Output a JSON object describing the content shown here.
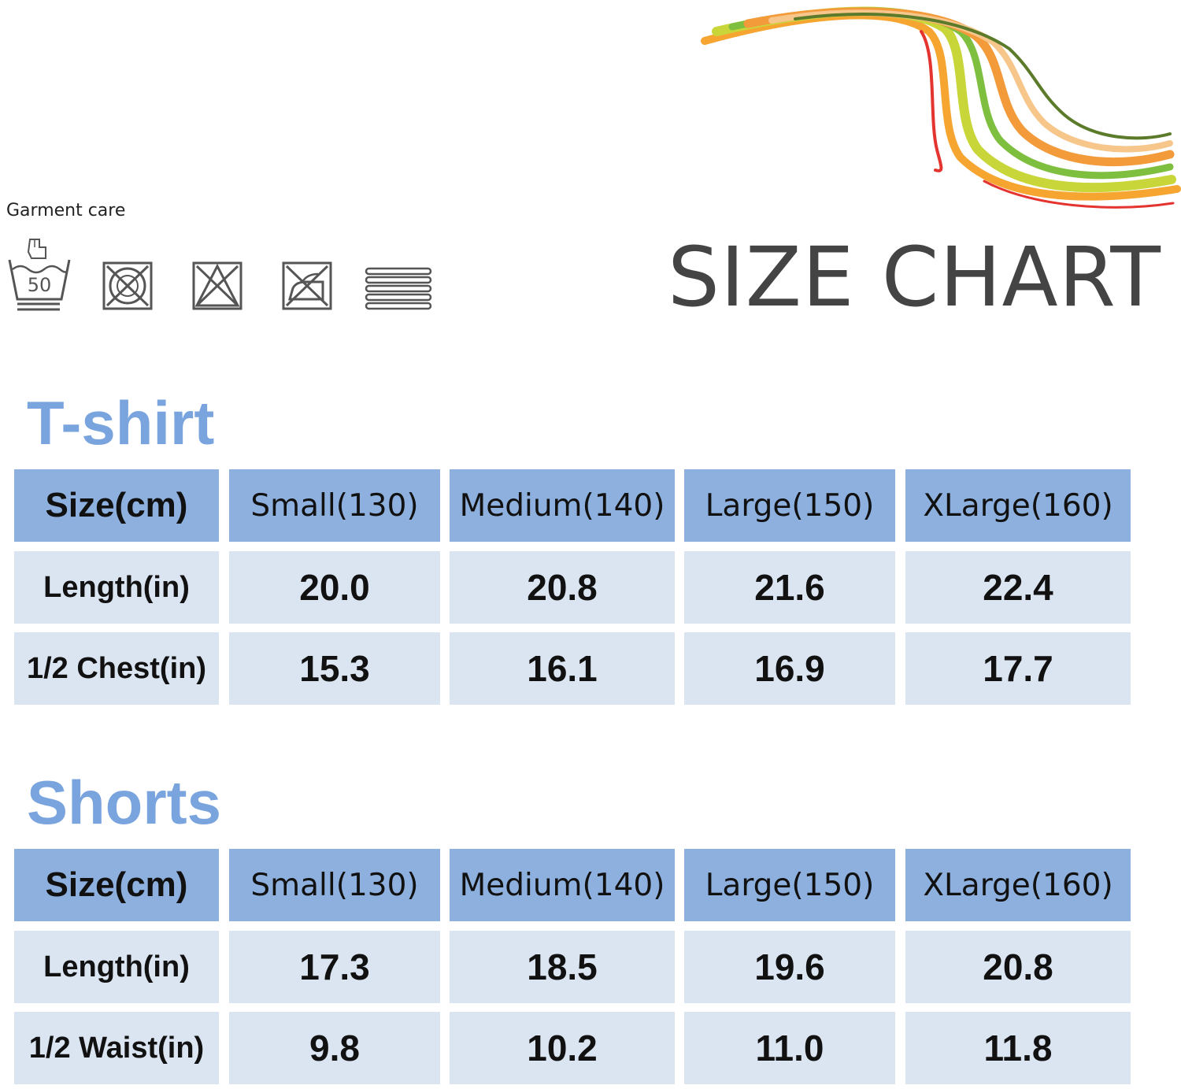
{
  "care": {
    "title": "Garment care",
    "icons": [
      {
        "name": "wash-50-hand-icon",
        "label": "50"
      },
      {
        "name": "no-tumble-dry-icon"
      },
      {
        "name": "no-bleach-icon"
      },
      {
        "name": "no-iron-icon"
      },
      {
        "name": "dry-flat-icon"
      }
    ]
  },
  "header": {
    "title": "SIZE CHART"
  },
  "colors": {
    "accent_title": "#7aa4de",
    "header_fill": "#8eb0de",
    "body_fill": "#dbe4f1"
  },
  "tables": [
    {
      "title": "T-shirt",
      "header": [
        "Size(cm)",
        "Small(130)",
        "Medium(140)",
        "Large(150)",
        "XLarge(160)"
      ],
      "rows": [
        [
          "Length(in)",
          "20.0",
          "20.8",
          "21.6",
          "22.4"
        ],
        [
          "1/2 Chest(in)",
          "15.3",
          "16.1",
          "16.9",
          "17.7"
        ]
      ]
    },
    {
      "title": "Shorts",
      "header": [
        "Size(cm)",
        "Small(130)",
        "Medium(140)",
        "Large(150)",
        "XLarge(160)"
      ],
      "rows": [
        [
          "Length(in)",
          "17.3",
          "18.5",
          "19.6",
          "20.8"
        ],
        [
          "1/2 Waist(in)",
          "9.8",
          "10.2",
          "11.0",
          "11.8"
        ]
      ]
    }
  ]
}
